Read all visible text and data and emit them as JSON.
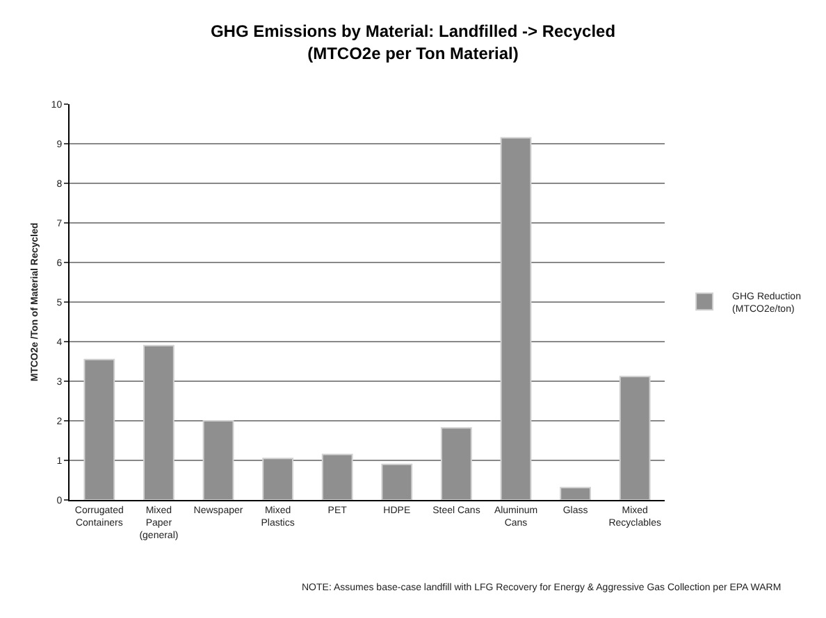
{
  "chart_data": {
    "type": "bar",
    "title": "GHG Emissions by Material: Landfilled -> Recycled (MTCO2e per Ton Material)",
    "ylabel": "MTCO2e /Ton of Material Recycled",
    "categories": [
      "Corrugated Containers",
      "Mixed Paper (general)",
      "Newspaper",
      "Mixed Plastics",
      "PET",
      "HDPE",
      "Steel Cans",
      "Aluminum Cans",
      "Glass",
      "Mixed Recyclables"
    ],
    "series": [
      {
        "name": "GHG Reduction (MTCO2e/ton)",
        "color": "#8f8f8f",
        "values": [
          3.55,
          3.9,
          2.0,
          1.05,
          1.15,
          0.9,
          1.82,
          9.15,
          0.31,
          3.12
        ]
      }
    ],
    "ylim": [
      0,
      10
    ],
    "yticks": [
      0,
      1,
      2,
      3,
      4,
      5,
      6,
      7,
      8,
      9,
      10
    ],
    "grid": "y",
    "legend": "right",
    "annotations": [
      "NOTE: Assumes base-case landfill with LFG Recovery for Energy & Aggressive Gas Collection per EPA WARM"
    ]
  }
}
